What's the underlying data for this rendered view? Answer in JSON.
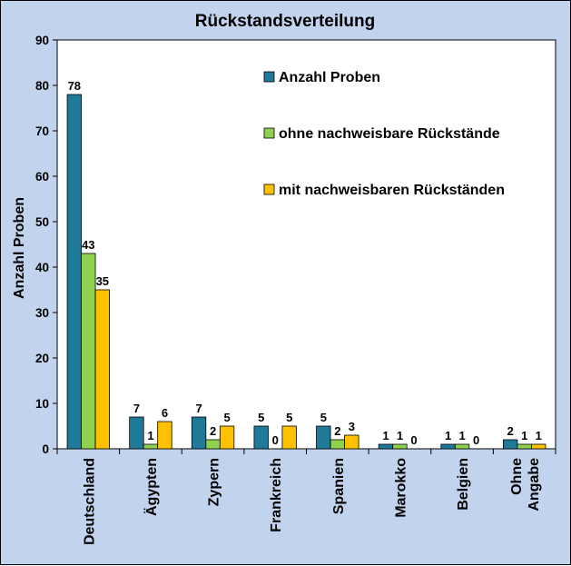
{
  "chart_data": {
    "type": "bar",
    "title": "Rückstandsverteilung",
    "xlabel": "",
    "ylabel": "Anzahl Proben",
    "ylim": [
      0,
      90
    ],
    "yticks": [
      0,
      10,
      20,
      30,
      40,
      50,
      60,
      70,
      80,
      90
    ],
    "categories": [
      [
        "Deutschland"
      ],
      [
        "Ägypten"
      ],
      [
        "Zypern"
      ],
      [
        "Frankreich"
      ],
      [
        "Spanien"
      ],
      [
        "Marokko"
      ],
      [
        "Belgien"
      ],
      [
        "Ohne",
        "Angabe"
      ]
    ],
    "series": [
      {
        "name": "Anzahl Proben",
        "color": "#1f7a9a",
        "values": [
          78,
          7,
          7,
          5,
          5,
          1,
          1,
          2
        ]
      },
      {
        "name": "ohne nachweisbare Rückstände",
        "color": "#8fd14f",
        "values": [
          43,
          1,
          2,
          0,
          2,
          1,
          1,
          1
        ]
      },
      {
        "name": "mit nachweisbaren Rückständen",
        "color": "#ffc000",
        "values": [
          35,
          6,
          5,
          5,
          3,
          0,
          0,
          1
        ]
      }
    ],
    "grid": false,
    "legend_position": "top-right",
    "data_labels": true,
    "plot_background": "#ffffff",
    "frame_background": "#c2d3ee"
  }
}
